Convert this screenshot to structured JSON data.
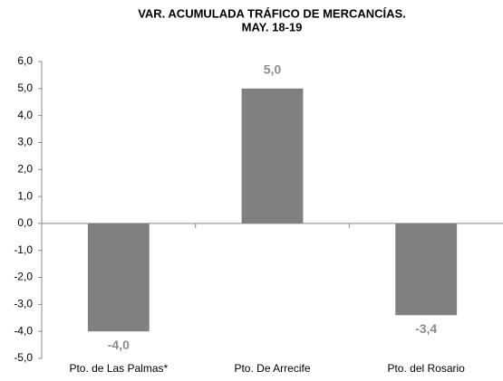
{
  "chart_data": {
    "type": "bar",
    "title": "VAR. ACUMULADA TRÁFICO DE MERCANCÍAS.",
    "subtitle": "MAY. 18-19",
    "categories": [
      "Pto. de Las Palmas*",
      "Pto. De Arrecife",
      "Pto. del Rosario"
    ],
    "values": [
      -4.0,
      5.0,
      -3.4
    ],
    "value_labels": [
      "-4,0",
      "5,0",
      "-3,4"
    ],
    "color": "#808080",
    "ylim": [
      -5,
      6
    ],
    "yticks": [
      {
        "value": 6,
        "label": "6,0"
      },
      {
        "value": 5,
        "label": "5,0"
      },
      {
        "value": 4,
        "label": "4,0"
      },
      {
        "value": 3,
        "label": "3,0"
      },
      {
        "value": 2,
        "label": "2,0"
      },
      {
        "value": 1,
        "label": "1,0"
      },
      {
        "value": 0,
        "label": "0,0"
      },
      {
        "value": -1,
        "label": "-1,0"
      },
      {
        "value": -2,
        "label": "-2,0"
      },
      {
        "value": -3,
        "label": "-3,0"
      },
      {
        "value": -4,
        "label": "-4,0"
      },
      {
        "value": -5,
        "label": "-5,0"
      }
    ],
    "grid": false
  }
}
